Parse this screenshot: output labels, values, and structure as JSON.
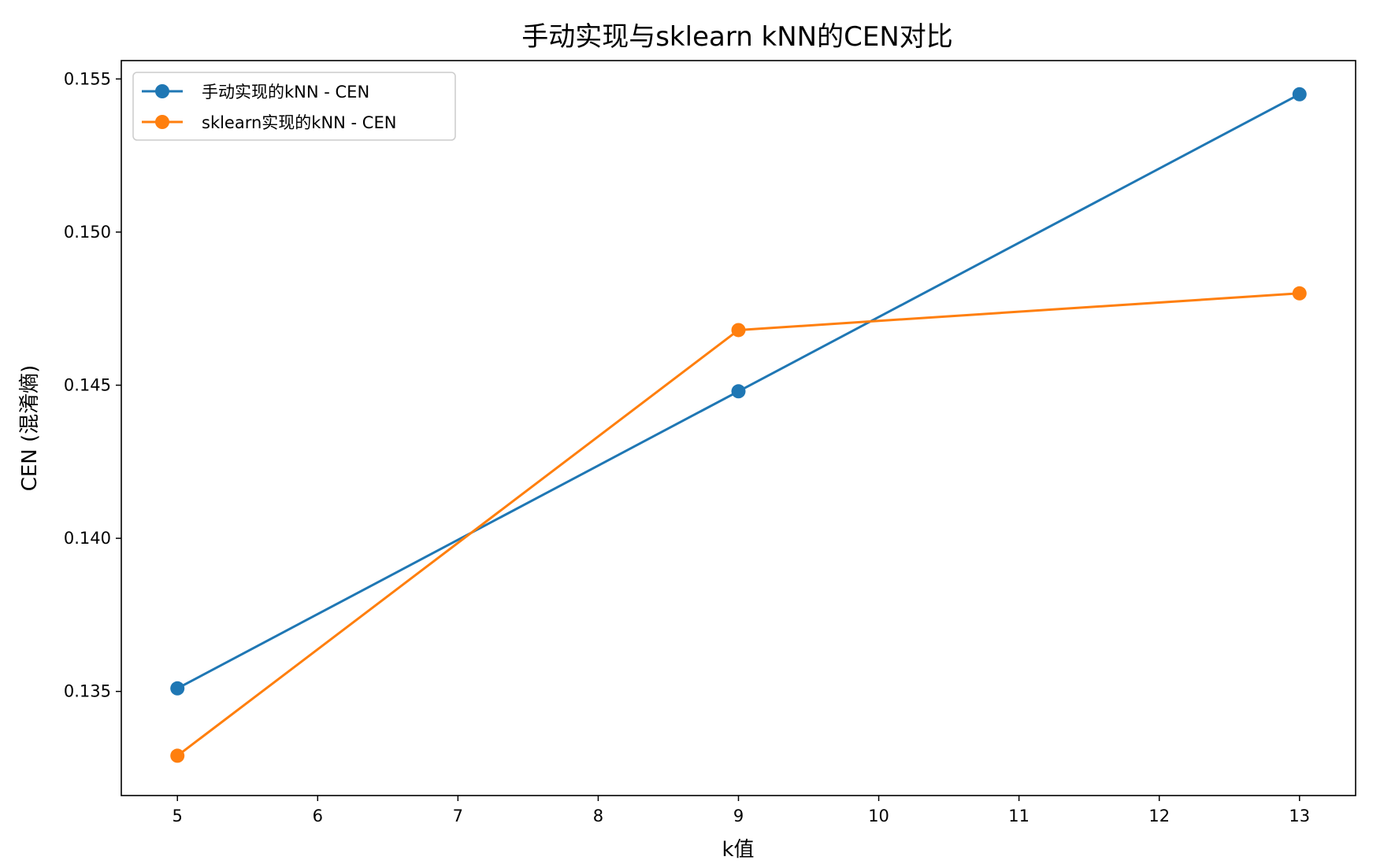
{
  "chart_data": {
    "type": "line",
    "title": "手动实现与sklearn kNN的CEN对比",
    "xlabel": "k值",
    "ylabel": "CEN (混淆熵)",
    "x": [
      5,
      9,
      13
    ],
    "xlim": [
      4.6,
      13.4
    ],
    "ylim": [
      0.1316,
      0.1556
    ],
    "xticks": [
      5,
      6,
      7,
      8,
      9,
      10,
      11,
      12,
      13
    ],
    "yticks": [
      0.135,
      0.14,
      0.145,
      0.15,
      0.155
    ],
    "ytick_labels": [
      "0.135",
      "0.140",
      "0.145",
      "0.150",
      "0.155"
    ],
    "grid": false,
    "legend_position": "top-left",
    "series": [
      {
        "name": "手动实现的kNN - CEN",
        "color": "#1f77b4",
        "marker": "circle",
        "values": [
          0.1351,
          0.1448,
          0.1545
        ]
      },
      {
        "name": "sklearn实现的kNN - CEN",
        "color": "#ff7f0e",
        "marker": "circle",
        "values": [
          0.1329,
          0.1468,
          0.148
        ]
      }
    ]
  }
}
